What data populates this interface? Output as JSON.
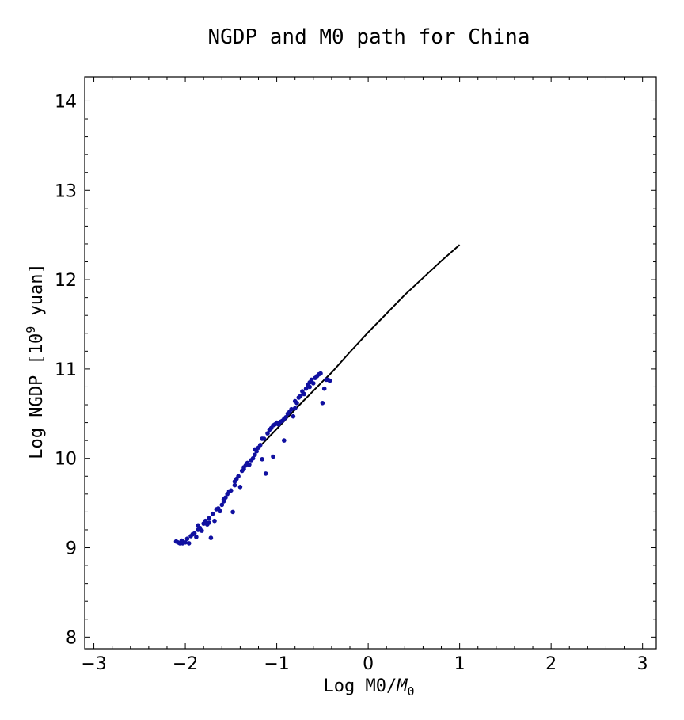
{
  "chart_data": {
    "type": "scatter",
    "title": "NGDP and M0 path for China",
    "xlabel": {
      "main": "Log M0/",
      "var": "M",
      "sub": "0"
    },
    "ylabel": {
      "main": "Log NGDP [10",
      "sup": "9",
      "tail": " yuan]"
    },
    "xlim": [
      -3.1,
      3.15
    ],
    "ylim": [
      7.87,
      14.27
    ],
    "xticks": [
      -3,
      -2,
      -1,
      0,
      1,
      2,
      3
    ],
    "xtick_labels": [
      "−3",
      "−2",
      "−1",
      "0",
      "1",
      "2",
      "3"
    ],
    "yticks": [
      8,
      9,
      10,
      11,
      12,
      13,
      14
    ],
    "ytick_labels": [
      "8",
      "9",
      "10",
      "11",
      "12",
      "13",
      "14"
    ],
    "grid": false,
    "series": [
      {
        "kind": "scatter",
        "color": "#1010a0",
        "points": [
          [
            -2.1,
            9.07
          ],
          [
            -2.08,
            9.06
          ],
          [
            -2.06,
            9.05
          ],
          [
            -2.04,
            9.08
          ],
          [
            -2.03,
            9.05
          ],
          [
            -2.0,
            9.06
          ],
          [
            -1.98,
            9.1
          ],
          [
            -1.96,
            9.05
          ],
          [
            -1.94,
            9.13
          ],
          [
            -1.92,
            9.15
          ],
          [
            -1.9,
            9.16
          ],
          [
            -1.88,
            9.12
          ],
          [
            -1.86,
            9.2
          ],
          [
            -1.84,
            9.22
          ],
          [
            -1.82,
            9.19
          ],
          [
            -1.8,
            9.27
          ],
          [
            -1.78,
            9.3
          ],
          [
            -1.76,
            9.26
          ],
          [
            -1.74,
            9.33
          ],
          [
            -1.72,
            9.11
          ],
          [
            -1.7,
            9.38
          ],
          [
            -1.68,
            9.3
          ],
          [
            -1.66,
            9.43
          ],
          [
            -1.64,
            9.44
          ],
          [
            -1.62,
            9.41
          ],
          [
            -1.6,
            9.48
          ],
          [
            -1.58,
            9.52
          ],
          [
            -1.56,
            9.56
          ],
          [
            -1.54,
            9.6
          ],
          [
            -1.52,
            9.63
          ],
          [
            -1.5,
            9.64
          ],
          [
            -1.48,
            9.4
          ],
          [
            -1.46,
            9.74
          ],
          [
            -1.44,
            9.77
          ],
          [
            -1.42,
            9.8
          ],
          [
            -1.4,
            9.68
          ],
          [
            -1.38,
            9.86
          ],
          [
            -1.36,
            9.9
          ],
          [
            -1.34,
            9.92
          ],
          [
            -1.32,
            9.95
          ],
          [
            -1.3,
            9.93
          ],
          [
            -1.28,
            9.98
          ],
          [
            -1.26,
            10.0
          ],
          [
            -1.24,
            10.04
          ],
          [
            -1.22,
            10.08
          ],
          [
            -1.2,
            10.12
          ],
          [
            -1.18,
            10.15
          ],
          [
            -1.16,
            9.99
          ],
          [
            -1.14,
            10.22
          ],
          [
            -1.12,
            9.83
          ],
          [
            -1.1,
            10.28
          ],
          [
            -1.08,
            10.32
          ],
          [
            -1.06,
            10.34
          ],
          [
            -1.04,
            10.02
          ],
          [
            -1.02,
            10.38
          ],
          [
            -1.0,
            10.4
          ],
          [
            -0.98,
            10.38
          ],
          [
            -0.96,
            10.41
          ],
          [
            -0.94,
            10.42
          ],
          [
            -0.92,
            10.2
          ],
          [
            -0.9,
            10.46
          ],
          [
            -0.88,
            10.5
          ],
          [
            -0.86,
            10.52
          ],
          [
            -0.84,
            10.55
          ],
          [
            -0.82,
            10.47
          ],
          [
            -0.8,
            10.56
          ],
          [
            -0.78,
            10.62
          ],
          [
            -0.76,
            10.68
          ],
          [
            -0.74,
            10.7
          ],
          [
            -0.72,
            10.75
          ],
          [
            -0.7,
            10.72
          ],
          [
            -0.68,
            10.78
          ],
          [
            -0.66,
            10.82
          ],
          [
            -0.64,
            10.85
          ],
          [
            -0.62,
            10.88
          ],
          [
            -0.6,
            10.84
          ],
          [
            -0.58,
            10.9
          ],
          [
            -0.56,
            10.92
          ],
          [
            -0.54,
            10.94
          ],
          [
            -0.52,
            10.95
          ],
          [
            -0.5,
            10.62
          ],
          [
            -0.48,
            10.78
          ],
          [
            -0.46,
            10.88
          ],
          [
            -0.44,
            10.88
          ],
          [
            -0.42,
            10.87
          ],
          [
            -1.86,
            9.25
          ],
          [
            -1.74,
            9.28
          ],
          [
            -1.58,
            9.54
          ],
          [
            -1.46,
            9.7
          ],
          [
            -1.36,
            9.88
          ],
          [
            -1.24,
            10.1
          ],
          [
            -1.16,
            10.22
          ],
          [
            -1.04,
            10.37
          ],
          [
            -0.92,
            10.44
          ],
          [
            -0.8,
            10.64
          ],
          [
            -0.64,
            10.8
          ]
        ]
      },
      {
        "kind": "line",
        "color": "#000000",
        "points": [
          [
            -1.16,
            10.16
          ],
          [
            -1.0,
            10.33
          ],
          [
            -0.75,
            10.6
          ],
          [
            -0.5,
            10.86
          ],
          [
            -0.4,
            10.96
          ],
          [
            -0.2,
            11.19
          ],
          [
            0.0,
            11.41
          ],
          [
            0.2,
            11.62
          ],
          [
            0.4,
            11.83
          ],
          [
            0.6,
            12.02
          ],
          [
            0.8,
            12.21
          ],
          [
            1.0,
            12.39
          ]
        ]
      }
    ]
  }
}
